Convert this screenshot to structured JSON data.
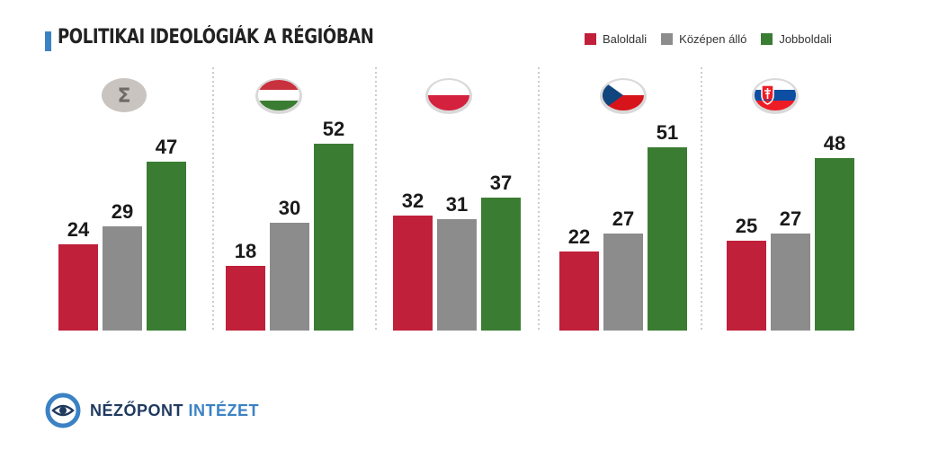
{
  "header": {
    "title": "POLITIKAI IDEOLÓGIÁK A RÉGIÓBAN"
  },
  "legend": [
    {
      "label": "Baloldali",
      "color": "#c0203a"
    },
    {
      "label": "Középen álló",
      "color": "#8c8c8c"
    },
    {
      "label": "Jobboldali",
      "color": "#3a7d32"
    }
  ],
  "footer": {
    "brand_part1": "NÉZŐPONT",
    "brand_part2": "INTÉZET"
  },
  "chart_data": {
    "type": "bar",
    "title": "POLITIKAI IDEOLÓGIÁK A RÉGIÓBAN",
    "legend_position": "top-right",
    "grid": false,
    "ylim": [
      0,
      60
    ],
    "groups": [
      {
        "icon": "sigma-icon",
        "values": [
          24,
          29,
          47
        ]
      },
      {
        "icon": "hungary-flag-icon",
        "values": [
          18,
          30,
          52
        ]
      },
      {
        "icon": "poland-flag-icon",
        "values": [
          32,
          31,
          37
        ]
      },
      {
        "icon": "czech-flag-icon",
        "values": [
          22,
          27,
          51
        ]
      },
      {
        "icon": "slovakia-flag-icon",
        "values": [
          25,
          27,
          48
        ]
      }
    ],
    "series": [
      {
        "name": "Baloldali",
        "values": [
          24,
          18,
          32,
          22,
          25
        ]
      },
      {
        "name": "Középen álló",
        "values": [
          29,
          30,
          31,
          27,
          27
        ]
      },
      {
        "name": "Jobboldali",
        "values": [
          47,
          52,
          37,
          51,
          48
        ]
      }
    ]
  }
}
